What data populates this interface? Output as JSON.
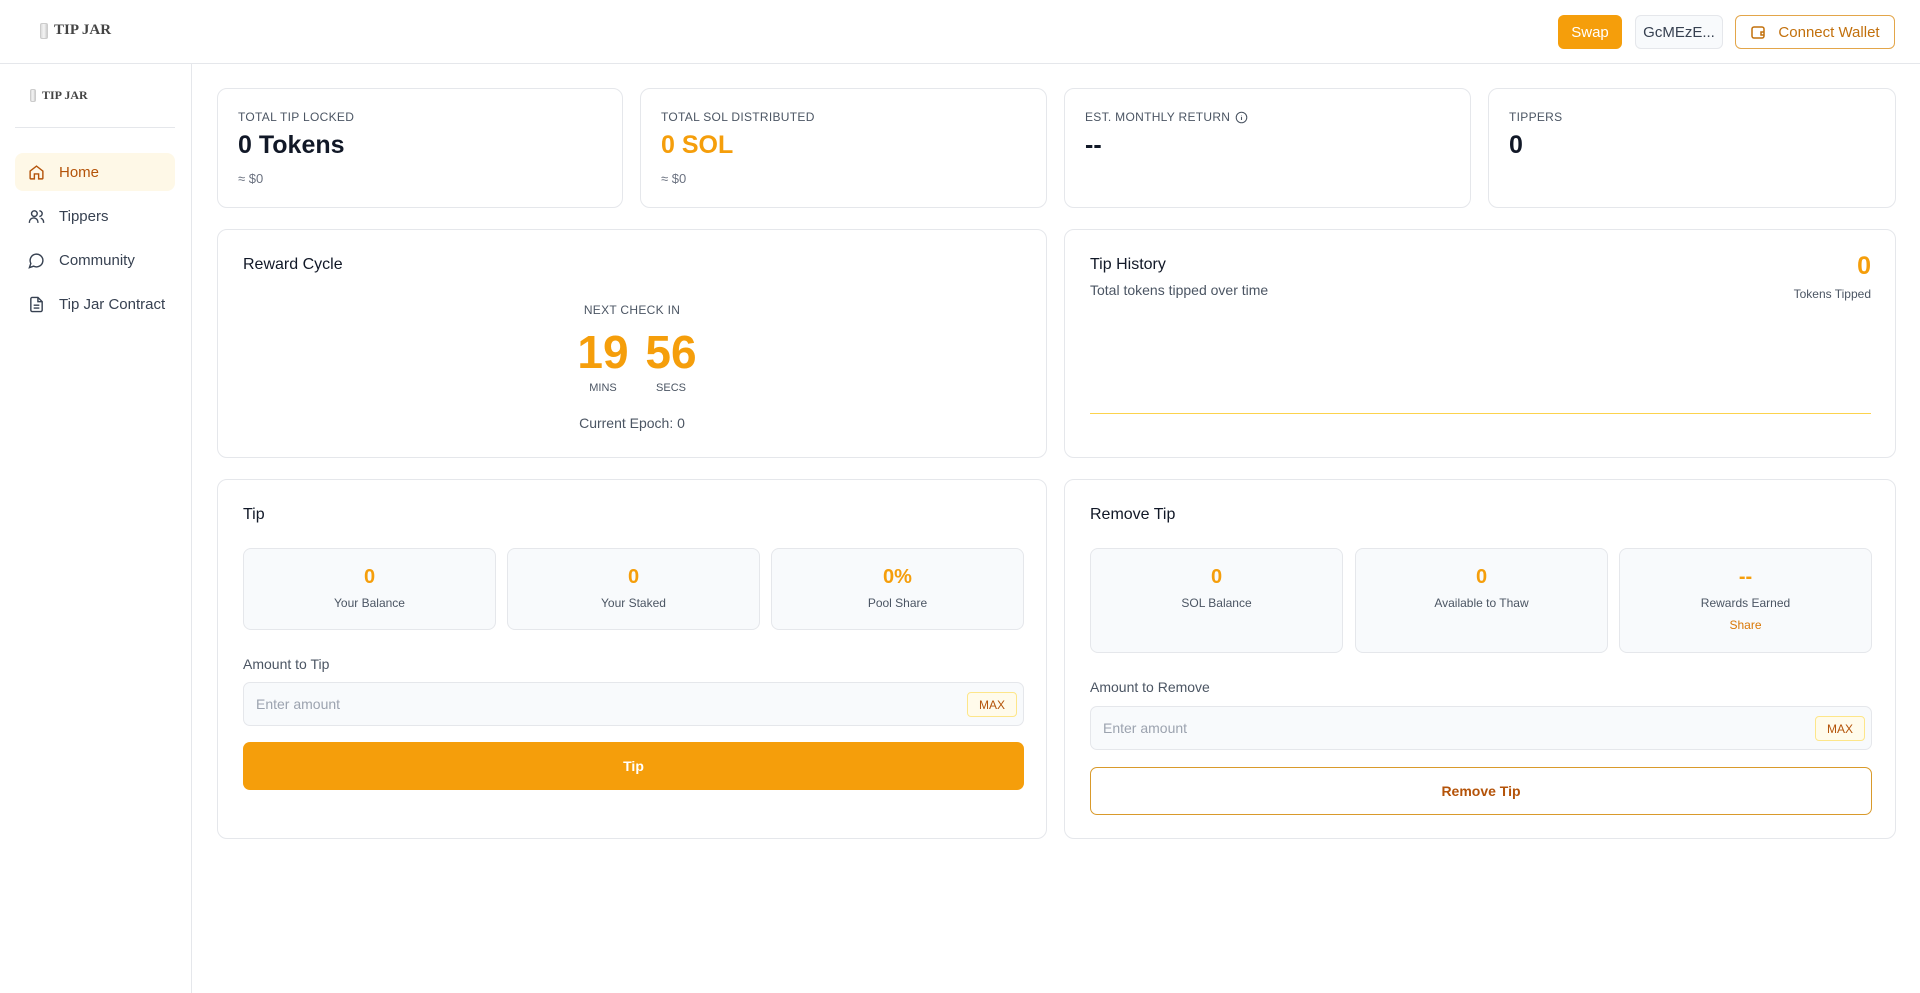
{
  "brand": {
    "name": "TIP JAR"
  },
  "header": {
    "swap": "Swap",
    "token": "GcMEzE...",
    "connect": "Connect Wallet"
  },
  "sidebar": {
    "items": [
      {
        "label": "Home",
        "icon": "home-icon",
        "active": true
      },
      {
        "label": "Tippers",
        "icon": "users-icon"
      },
      {
        "label": "Community",
        "icon": "chat-icon"
      },
      {
        "label": "Tip Jar Contract",
        "icon": "document-icon"
      }
    ]
  },
  "stats": [
    {
      "label": "TOTAL TIP LOCKED",
      "value": "0 Tokens",
      "sub": "≈ $0"
    },
    {
      "label": "TOTAL SOL DISTRIBUTED",
      "value": "0 SOL",
      "sub": "≈ $0"
    },
    {
      "label": "EST. MONTHLY RETURN",
      "value": "--"
    },
    {
      "label": "TIPPERS",
      "value": "0"
    }
  ],
  "reward": {
    "title": "Reward Cycle",
    "next": "NEXT CHECK IN",
    "mins": "19",
    "mins_label": "MINS",
    "secs": "56",
    "secs_label": "SECS",
    "epoch": "Current Epoch: 0"
  },
  "history": {
    "title": "Tip History",
    "subtitle": "Total tokens tipped over time",
    "value": "0",
    "value_label": "Tokens Tipped"
  },
  "tip": {
    "title": "Tip",
    "stats": [
      {
        "value": "0",
        "label": "Your Balance"
      },
      {
        "value": "0",
        "label": "Your Staked"
      },
      {
        "value": "0%",
        "label": "Pool Share"
      }
    ],
    "amount_label": "Amount to Tip",
    "placeholder": "Enter amount",
    "max": "MAX",
    "button": "Tip"
  },
  "remove": {
    "title": "Remove Tip",
    "stats": [
      {
        "value": "0",
        "label": "SOL Balance"
      },
      {
        "value": "0",
        "label": "Available to Thaw"
      },
      {
        "value": "--",
        "label": "Rewards Earned",
        "link": "Share"
      }
    ],
    "amount_label": "Amount to Remove",
    "placeholder": "Enter amount",
    "max": "MAX",
    "button": "Remove Tip"
  },
  "colors": {
    "accent": "#f59e0b",
    "accent_dark": "#b45309"
  }
}
